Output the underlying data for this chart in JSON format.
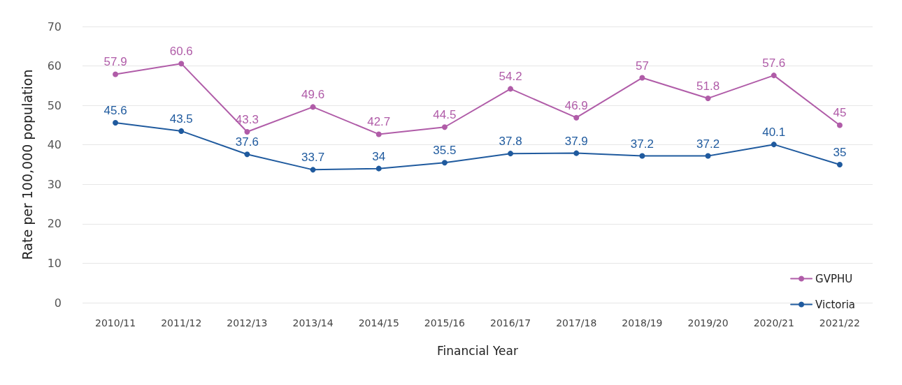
{
  "chart_data": {
    "type": "line",
    "xlabel": "Financial Year",
    "ylabel": "Rate per 100,000 population",
    "categories": [
      "2010/11",
      "2011/12",
      "2012/13",
      "2013/14",
      "2014/15",
      "2015/16",
      "2016/17",
      "2017/18",
      "2018/19",
      "2019/20",
      "2020/21",
      "2021/22"
    ],
    "series": [
      {
        "name": "GVPHU",
        "color": "#b05ca8",
        "values": [
          57.9,
          60.6,
          43.3,
          49.6,
          42.7,
          44.5,
          54.2,
          46.9,
          57,
          51.8,
          57.6,
          45
        ]
      },
      {
        "name": "Victoria",
        "color": "#1f5a9e",
        "values": [
          45.6,
          43.5,
          37.6,
          33.7,
          34,
          35.5,
          37.8,
          37.9,
          37.2,
          37.2,
          40.1,
          35
        ]
      }
    ],
    "ylim": [
      0,
      70
    ],
    "yticks": [
      0,
      10,
      20,
      30,
      40,
      50,
      60,
      70
    ],
    "grid": "y",
    "legend": "bottom right",
    "marker": "circle",
    "line_style": "solid",
    "data_labels": true
  }
}
